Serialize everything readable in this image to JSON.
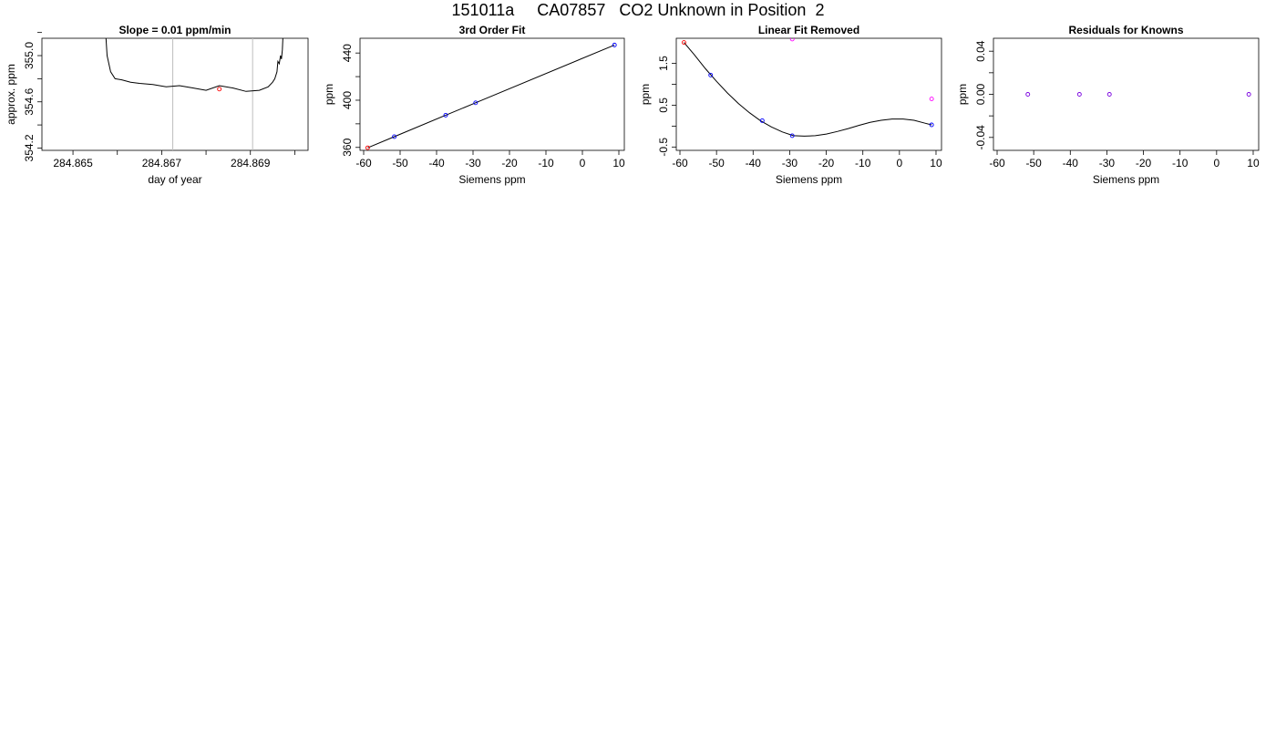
{
  "figure": {
    "title": "151011a     CA07857   CO2 Unknown in Position  2"
  },
  "chart_data": [
    {
      "type": "line",
      "title": "Slope =  0.01  ppm/min",
      "xlabel": "day of year",
      "ylabel": "approx. ppm",
      "xlim": [
        284.8643,
        284.8703
      ],
      "ylim": [
        354.18,
        355.15
      ],
      "x_ticks": [
        {
          "value": 284.865,
          "label": "284.865"
        },
        {
          "value": 284.866,
          "label": ""
        },
        {
          "value": 284.867,
          "label": "284.867"
        },
        {
          "value": 284.868,
          "label": ""
        },
        {
          "value": 284.869,
          "label": "284.869"
        },
        {
          "value": 284.87,
          "label": ""
        }
      ],
      "y_ticks": [
        {
          "value": 354.2,
          "label": "354.2"
        },
        {
          "value": 354.4,
          "label": ""
        },
        {
          "value": 354.6,
          "label": "354.6"
        },
        {
          "value": 354.8,
          "label": ""
        },
        {
          "value": 355.0,
          "label": "355.0"
        },
        {
          "value": 355.2,
          "label": ""
        }
      ],
      "vlines": [
        284.86725,
        284.86905
      ],
      "series": [
        {
          "color": "#000000",
          "x": [
            284.86572,
            284.86577,
            284.86585,
            284.86595,
            284.8661,
            284.8663,
            284.8665,
            284.8668,
            284.8671,
            284.8674,
            284.8677,
            284.868,
            284.8683,
            284.8686,
            284.8689,
            284.8692,
            284.8694,
            284.8695,
            284.86955,
            284.8696,
            284.86962,
            284.86965,
            284.86968,
            284.8697,
            284.86972,
            284.86975
          ],
          "y": [
            355.3,
            355.0,
            354.86,
            354.8,
            354.79,
            354.77,
            354.76,
            354.75,
            354.73,
            354.74,
            354.72,
            354.7,
            354.74,
            354.72,
            354.69,
            354.7,
            354.73,
            354.77,
            354.8,
            354.86,
            354.95,
            354.93,
            355.0,
            354.97,
            355.05,
            355.3
          ]
        }
      ],
      "points": [
        {
          "x": 284.8683,
          "y": 354.71,
          "color": "#ff0000"
        }
      ]
    },
    {
      "type": "scatter",
      "title": "3rd Order Fit",
      "xlabel": "Siemens ppm",
      "ylabel": "ppm",
      "xlim": [
        -61,
        11.5
      ],
      "ylim": [
        357.5,
        452.5
      ],
      "x_ticks": [
        {
          "value": -60,
          "label": "-60"
        },
        {
          "value": -50,
          "label": "-50"
        },
        {
          "value": -40,
          "label": "-40"
        },
        {
          "value": -30,
          "label": "-30"
        },
        {
          "value": -20,
          "label": "-20"
        },
        {
          "value": -10,
          "label": "-10"
        },
        {
          "value": 0,
          "label": "0"
        },
        {
          "value": 10,
          "label": "10"
        }
      ],
      "y_ticks": [
        {
          "value": 360,
          "label": "360"
        },
        {
          "value": 380,
          "label": ""
        },
        {
          "value": 400,
          "label": "400"
        },
        {
          "value": 420,
          "label": ""
        },
        {
          "value": 440,
          "label": "440"
        }
      ],
      "series": [
        {
          "color": "#000000",
          "x": [
            -58.9,
            -51.6,
            -37.5,
            -29.3,
            8.8
          ],
          "y": [
            359.7,
            369.1,
            387.3,
            397.8,
            446.8
          ]
        }
      ],
      "points": [
        {
          "x": -58.9,
          "y": 359.7,
          "color": "#ff0000"
        },
        {
          "x": -51.6,
          "y": 369.1,
          "color": "#0000ff"
        },
        {
          "x": -37.5,
          "y": 387.3,
          "color": "#0000ff"
        },
        {
          "x": -29.3,
          "y": 397.8,
          "color": "#0000ff"
        },
        {
          "x": 8.8,
          "y": 446.8,
          "color": "#0000ff"
        }
      ]
    },
    {
      "type": "scatter",
      "title": "Linear Fit Removed",
      "xlabel": "Siemens ppm",
      "ylabel": "ppm",
      "xlim": [
        -61,
        11.5
      ],
      "ylim": [
        -0.58,
        2.1
      ],
      "x_ticks": [
        {
          "value": -60,
          "label": "-60"
        },
        {
          "value": -50,
          "label": "-50"
        },
        {
          "value": -40,
          "label": "-40"
        },
        {
          "value": -30,
          "label": "-30"
        },
        {
          "value": -20,
          "label": "-20"
        },
        {
          "value": -10,
          "label": "-10"
        },
        {
          "value": 0,
          "label": "0"
        },
        {
          "value": 10,
          "label": "10"
        }
      ],
      "y_ticks": [
        {
          "value": -0.5,
          "label": "-0.5"
        },
        {
          "value": 0,
          "label": ""
        },
        {
          "value": 0.5,
          "label": "0.5"
        },
        {
          "value": 1.0,
          "label": ""
        },
        {
          "value": 1.5,
          "label": "1.5"
        }
      ],
      "series": [
        {
          "color": "#000000",
          "x": [
            -58.9,
            -56,
            -53,
            -50,
            -47,
            -44,
            -41,
            -38,
            -35,
            -32,
            -29,
            -26,
            -23,
            -20,
            -17,
            -14,
            -11,
            -8,
            -5,
            -2,
            1,
            4,
            7,
            8.8
          ],
          "y": [
            2.0,
            1.7,
            1.37,
            1.07,
            0.79,
            0.54,
            0.32,
            0.13,
            -0.02,
            -0.14,
            -0.23,
            -0.24,
            -0.23,
            -0.19,
            -0.13,
            -0.06,
            0.02,
            0.09,
            0.14,
            0.17,
            0.17,
            0.14,
            0.07,
            0.03
          ]
        }
      ],
      "points": [
        {
          "x": -58.9,
          "y": 2.0,
          "color": "#ff0000"
        },
        {
          "x": -51.6,
          "y": 1.22,
          "color": "#0000ff"
        },
        {
          "x": -37.5,
          "y": 0.13,
          "color": "#0000ff"
        },
        {
          "x": -29.3,
          "y": -0.23,
          "color": "#0000ff"
        },
        {
          "x": 8.8,
          "y": 0.03,
          "color": "#0000ff"
        },
        {
          "x": -29.3,
          "y": 2.08,
          "color": "#ff00ff"
        },
        {
          "x": 8.8,
          "y": 0.65,
          "color": "#ff00ff"
        }
      ]
    },
    {
      "type": "scatter",
      "title": "Residuals for Knowns",
      "xlabel": "Siemens ppm",
      "ylabel": "ppm",
      "xlim": [
        -61,
        11.5
      ],
      "ylim": [
        -0.052,
        0.052
      ],
      "x_ticks": [
        {
          "value": -60,
          "label": "-60"
        },
        {
          "value": -50,
          "label": "-50"
        },
        {
          "value": -40,
          "label": "-40"
        },
        {
          "value": -30,
          "label": "-30"
        },
        {
          "value": -20,
          "label": "-20"
        },
        {
          "value": -10,
          "label": "-10"
        },
        {
          "value": 0,
          "label": "0"
        },
        {
          "value": 10,
          "label": "10"
        }
      ],
      "y_ticks": [
        {
          "value": -0.04,
          "label": "-0.04"
        },
        {
          "value": -0.02,
          "label": ""
        },
        {
          "value": 0.0,
          "label": "0.00"
        },
        {
          "value": 0.02,
          "label": ""
        },
        {
          "value": 0.04,
          "label": "0.04"
        }
      ],
      "series": [],
      "points": [
        {
          "x": -51.6,
          "y": 0.0,
          "color": "#7a00e0"
        },
        {
          "x": -37.5,
          "y": 0.0,
          "color": "#7a00e0"
        },
        {
          "x": -29.3,
          "y": 0.0,
          "color": "#7a00e0"
        },
        {
          "x": 8.8,
          "y": 0.0,
          "color": "#7a00e0"
        }
      ]
    }
  ]
}
